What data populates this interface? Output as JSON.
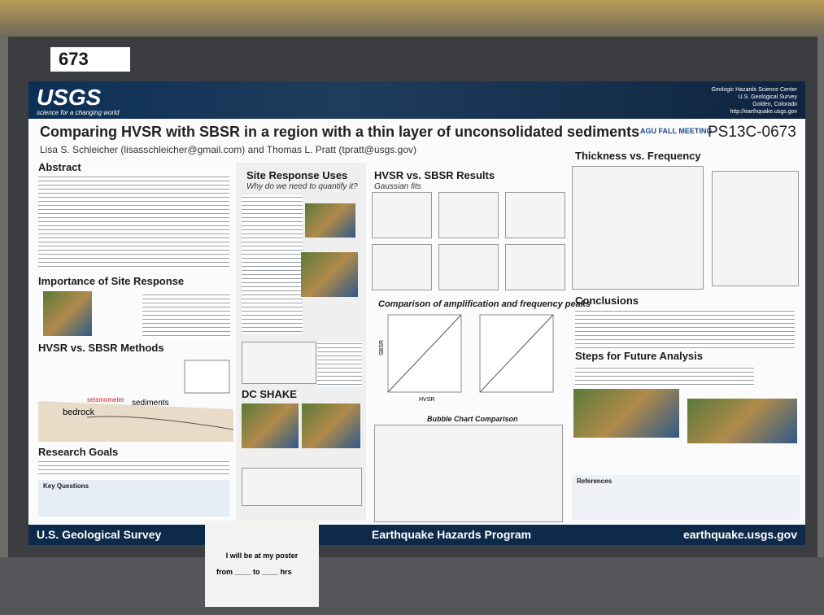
{
  "booth_number": "673",
  "header": {
    "logo": "USGS",
    "tagline": "science for a changing world",
    "org": [
      "Geologic Hazards Science Center",
      "U.S. Geological Survey",
      "Golden, Colorado",
      "http://earthquake.usgs.gov"
    ]
  },
  "title": "Comparing HVSR with SBSR in a region with a thin layer of unconsolidated sediments",
  "meeting": "AGU FALL MEETING",
  "poster_id": "PS13C-0673",
  "authors": "Lisa S. Schleicher (lisasschleicher@gmail.com) and Thomas L. Pratt (tpratt@usgs.gov)",
  "sections": {
    "abstract": "Abstract",
    "importance": "Importance of Site Response",
    "methods": "HVSR vs. SBSR Methods",
    "goals": "Research Goals",
    "questions": "Key Questions",
    "uses": "Site Response Uses",
    "uses_sub": "Why do we need to quantify it?",
    "dcshake": "DC SHAKE",
    "results": "HVSR vs. SBSR Results",
    "results_sub": "Gaussian fits",
    "comparison": "Comparison of amplification and frequency peaks",
    "bubble": "Bubble Chart Comparison",
    "thickness": "Thickness vs. Frequency",
    "conclusions": "Conclusions",
    "future": "Steps for Future Analysis",
    "references": "References"
  },
  "diagram": {
    "sediments": "sediments",
    "bedrock": "bedrock",
    "seismometer": "seismometer"
  },
  "axes": {
    "y": "SBSR",
    "x": "HVSR"
  },
  "footer": {
    "left": "U.S. Geological Survey",
    "center": "Earthquake Hazards Program",
    "right": "earthquake.usgs.gov"
  },
  "sign": {
    "line1": "I will be at my poster",
    "from": "from",
    "to": "to",
    "hrs": "hrs"
  }
}
